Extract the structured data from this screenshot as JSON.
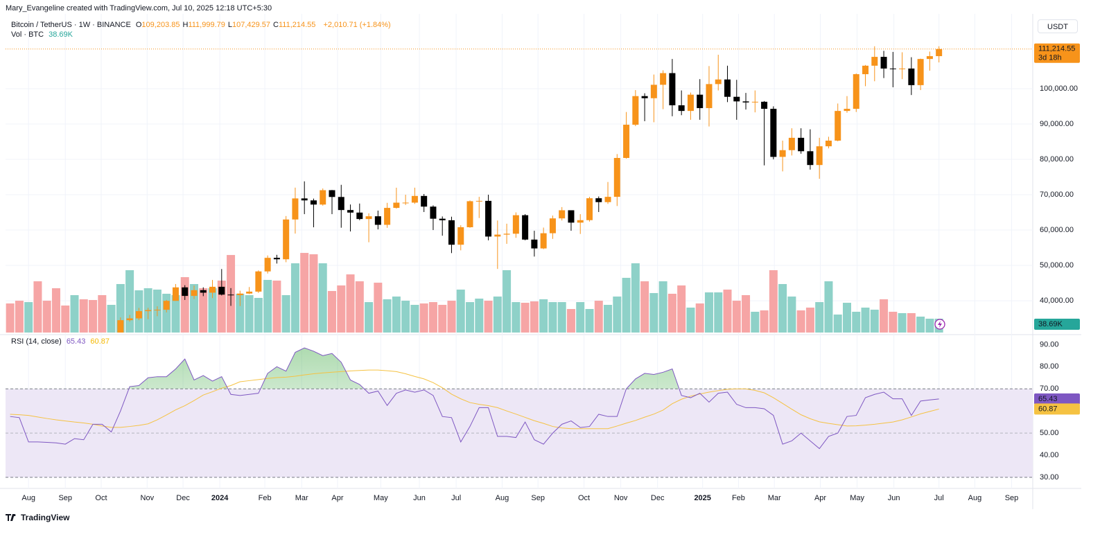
{
  "header": {
    "credit": "Mary_Evangeline created with TradingView.com, Jul 10, 2025 12:18 UTC+5:30",
    "symbol": "Bitcoin / TetherUS · 1W · BINANCE",
    "ohlc": [
      {
        "key": "O",
        "value": "109,203.85"
      },
      {
        "key": "H",
        "value": "111,999.79"
      },
      {
        "key": "L",
        "value": "107,429.57"
      },
      {
        "key": "C",
        "value": "111,214.55"
      }
    ],
    "change": "+2,010.71 (+1.84%)",
    "volume_title": "Vol · BTC",
    "currency": "USDT"
  },
  "footer": {
    "brand": "TradingView"
  },
  "chart_data": {
    "type": "candlestick",
    "xlim": [
      -0.5,
      111.2
    ],
    "xticks": [
      {
        "value": 2,
        "label": "Aug"
      },
      {
        "value": 6,
        "label": "Sep"
      },
      {
        "value": 9.9,
        "label": "Oct"
      },
      {
        "value": 14.9,
        "label": "Nov"
      },
      {
        "value": 18.8,
        "label": "Dec"
      },
      {
        "value": 22.8,
        "label": "2024"
      },
      {
        "value": 27.7,
        "label": "Feb"
      },
      {
        "value": 31.7,
        "label": "Mar"
      },
      {
        "value": 35.6,
        "label": "Apr"
      },
      {
        "value": 40.3,
        "label": "May"
      },
      {
        "value": 44.5,
        "label": "Jun"
      },
      {
        "value": 48.5,
        "label": "Jul"
      },
      {
        "value": 53.5,
        "label": "Aug"
      },
      {
        "value": 57.4,
        "label": "Sep"
      },
      {
        "value": 62.4,
        "label": "Oct"
      },
      {
        "value": 66.4,
        "label": "Nov"
      },
      {
        "value": 70.4,
        "label": "Dec"
      },
      {
        "value": 75.3,
        "label": "2025"
      },
      {
        "value": 79.2,
        "label": "Feb"
      },
      {
        "value": 83.1,
        "label": "Mar"
      },
      {
        "value": 88.1,
        "label": "Apr"
      },
      {
        "value": 92.1,
        "label": "May"
      },
      {
        "value": 96.1,
        "label": "Jun"
      },
      {
        "value": 101,
        "label": "Jul"
      },
      {
        "value": 104.9,
        "label": "Aug"
      },
      {
        "value": 108.9,
        "label": "Sep"
      }
    ],
    "year_ticks_bold": true,
    "ylim": [
      31000,
      119600
    ],
    "yticks": [
      {
        "value": 40000,
        "label": "40,000.00"
      },
      {
        "value": 50000,
        "label": "50,000.00"
      },
      {
        "value": 60000,
        "label": "60,000.00"
      },
      {
        "value": 70000,
        "label": "70,000.00"
      },
      {
        "value": 80000,
        "label": "80,000.00"
      },
      {
        "value": 90000,
        "label": "90,000.00"
      },
      {
        "value": 100000,
        "label": "100,000.00"
      }
    ],
    "grid": true,
    "up_color": "#f7931a",
    "down_color": "#000000",
    "candles": {
      "open": [
        null,
        null,
        null,
        null,
        null,
        null,
        null,
        null,
        null,
        null,
        null,
        null,
        29990,
        34500,
        35010,
        37060,
        37360,
        37450,
        39970,
        43780,
        41370,
        42990,
        42280,
        43950,
        41730,
        41580,
        42030,
        42580,
        48300,
        52140,
        51730,
        62990,
        68950,
        68390,
        67210,
        71280,
        69360,
        65660,
        64940,
        63120,
        63900,
        61480,
        66270,
        67750,
        67760,
        69650,
        66630,
        63210,
        62770,
        55850,
        60800,
        68160,
        68260,
        58160,
        58710,
        58960,
        64200,
        57300,
        54800,
        59100,
        63300,
        65600,
        62100,
        62800,
        69000,
        67900,
        69400,
        80400,
        89800,
        97900,
        97300,
        101100,
        104400,
        95300,
        93700,
        98300,
        94500,
        101300,
        102600,
        97700,
        96400,
        96100,
        96300,
        94300,
        80700,
        82600,
        86100,
        82300,
        78400,
        83700,
        85300,
        93700,
        94300,
        104100,
        106500,
        109000,
        105700,
        105600,
        105700,
        101000,
        108400,
        109203.85
      ],
      "high": [
        null,
        null,
        null,
        null,
        null,
        null,
        null,
        null,
        null,
        null,
        null,
        null,
        35280,
        35980,
        37980,
        38000,
        38420,
        40250,
        44730,
        44400,
        44300,
        43800,
        45880,
        48970,
        43580,
        42840,
        43880,
        48590,
        52810,
        52990,
        63970,
        72000,
        73780,
        68900,
        71770,
        71340,
        72800,
        67230,
        67500,
        64730,
        65500,
        67700,
        71980,
        70000,
        71990,
        70200,
        66990,
        63850,
        63780,
        61360,
        68370,
        69400,
        70000,
        62700,
        61800,
        65000,
        64500,
        59800,
        60700,
        64100,
        66500,
        65200,
        64500,
        69400,
        69500,
        73600,
        81500,
        93400,
        99600,
        98700,
        104000,
        105200,
        108400,
        99500,
        98900,
        102700,
        106400,
        109600,
        106500,
        102500,
        98800,
        99500,
        96500,
        95000,
        85300,
        88800,
        88800,
        88500,
        86100,
        86400,
        95800,
        97900,
        104300,
        106700,
        112000,
        110700,
        110400,
        110300,
        108900,
        108500,
        110500,
        111999.79
      ],
      "low": [
        null,
        null,
        null,
        null,
        null,
        null,
        null,
        null,
        null,
        null,
        null,
        null,
        29900,
        34080,
        34510,
        34800,
        35630,
        36700,
        39970,
        40220,
        40500,
        41300,
        40750,
        41500,
        38550,
        38500,
        41880,
        42200,
        47700,
        50520,
        50900,
        59000,
        64500,
        60780,
        66900,
        64500,
        60660,
        59600,
        62790,
        56550,
        60190,
        60630,
        66060,
        67100,
        67400,
        65100,
        60000,
        58400,
        53480,
        54260,
        60650,
        63400,
        57100,
        49000,
        56100,
        57800,
        57100,
        52500,
        54600,
        57500,
        62700,
        59800,
        58900,
        62400,
        65100,
        67400,
        66800,
        80200,
        89400,
        90800,
        90500,
        94200,
        92200,
        92500,
        91200,
        91200,
        89300,
        99500,
        96200,
        91200,
        94100,
        93300,
        78300,
        80000,
        76600,
        81100,
        81600,
        77100,
        74500,
        83100,
        85100,
        93200,
        93400,
        100700,
        102100,
        103000,
        100400,
        102700,
        98200,
        99600,
        105100,
        107429.57
      ],
      "close": [
        null,
        null,
        null,
        null,
        null,
        null,
        null,
        null,
        null,
        null,
        null,
        null,
        34500,
        35010,
        37060,
        37360,
        37450,
        39970,
        43780,
        41370,
        42990,
        42280,
        43950,
        41730,
        41580,
        42030,
        42580,
        48300,
        52140,
        51730,
        62990,
        68950,
        68390,
        67210,
        71280,
        69360,
        65660,
        64940,
        63120,
        63900,
        61480,
        66270,
        67750,
        67760,
        69650,
        66630,
        63210,
        62770,
        55850,
        60800,
        68160,
        68260,
        58160,
        58710,
        58960,
        64200,
        57300,
        54800,
        59100,
        63300,
        65600,
        62100,
        62800,
        69000,
        67900,
        69400,
        80400,
        89800,
        97900,
        97300,
        101100,
        104400,
        95300,
        93700,
        98300,
        94500,
        101300,
        102600,
        97700,
        96400,
        96100,
        96300,
        94300,
        80700,
        82600,
        86100,
        82300,
        78400,
        83700,
        85300,
        93700,
        94300,
        104100,
        106500,
        109000,
        105700,
        105600,
        105700,
        101000,
        108400,
        109200,
        111214.55
      ]
    },
    "last_price": {
      "value": 111214.55,
      "label": "111,214.55",
      "countdown": "3d 18h",
      "color": "#f7931a"
    },
    "volume": {
      "ylim": [
        0,
        875000
      ],
      "value_label": "38.69K",
      "tag_color": "#26a69a",
      "values": [
        81300,
        89000,
        85100,
        143200,
        89000,
        123800,
        75500,
        104500,
        92900,
        90900,
        104500,
        77400,
        135500,
        174200,
        118000,
        123800,
        120000,
        108400,
        104500,
        154800,
        135500,
        123800,
        123800,
        145100,
        216700,
        108400,
        104500,
        96800,
        147100,
        145100,
        104500,
        193500,
        222500,
        218700,
        193500,
        116100,
        131600,
        162500,
        143200,
        85100,
        139300,
        92900,
        100600,
        89000,
        77400,
        81300,
        85100,
        77400,
        89000,
        120000,
        85100,
        94800,
        89000,
        100600,
        174200,
        85100,
        83200,
        87100,
        92900,
        85100,
        85100,
        65800,
        85100,
        65800,
        89000,
        77400,
        100600,
        152900,
        193500,
        143200,
        110300,
        143200,
        108400,
        131600,
        69700,
        81300,
        112200,
        112200,
        120000,
        89000,
        104500,
        58100,
        61900,
        174200,
        135500,
        100600,
        61900,
        69700,
        85100,
        143200,
        50300,
        83200,
        58100,
        69700,
        63900,
        92900,
        58100,
        54200,
        54200,
        44500,
        38700,
        38690
      ],
      "colors": [
        "#f6a5a5",
        "#f6a5a5",
        "#8ed1c8",
        "#f6a5a5",
        "#f6a5a5",
        "#f6a5a5",
        "#f6a5a5",
        "#8ed1c8",
        "#f6a5a5",
        "#f6a5a5",
        "#f6a5a5",
        "#8ed1c8",
        "#8ed1c8",
        "#8ed1c8",
        "#8ed1c8",
        "#8ed1c8",
        "#8ed1c8",
        "#8ed1c8",
        "#8ed1c8",
        "#f6a5a5",
        "#8ed1c8",
        "#f6a5a5",
        "#8ed1c8",
        "#f6a5a5",
        "#f6a5a5",
        "#8ed1c8",
        "#8ed1c8",
        "#8ed1c8",
        "#8ed1c8",
        "#f6a5a5",
        "#8ed1c8",
        "#8ed1c8",
        "#f6a5a5",
        "#f6a5a5",
        "#8ed1c8",
        "#f6a5a5",
        "#f6a5a5",
        "#f6a5a5",
        "#f6a5a5",
        "#8ed1c8",
        "#f6a5a5",
        "#8ed1c8",
        "#8ed1c8",
        "#8ed1c8",
        "#8ed1c8",
        "#f6a5a5",
        "#f6a5a5",
        "#f6a5a5",
        "#f6a5a5",
        "#8ed1c8",
        "#8ed1c8",
        "#8ed1c8",
        "#f6a5a5",
        "#8ed1c8",
        "#8ed1c8",
        "#8ed1c8",
        "#f6a5a5",
        "#f6a5a5",
        "#8ed1c8",
        "#8ed1c8",
        "#8ed1c8",
        "#f6a5a5",
        "#8ed1c8",
        "#8ed1c8",
        "#f6a5a5",
        "#8ed1c8",
        "#8ed1c8",
        "#8ed1c8",
        "#8ed1c8",
        "#f6a5a5",
        "#8ed1c8",
        "#8ed1c8",
        "#f6a5a5",
        "#f6a5a5",
        "#8ed1c8",
        "#f6a5a5",
        "#8ed1c8",
        "#8ed1c8",
        "#f6a5a5",
        "#f6a5a5",
        "#f6a5a5",
        "#8ed1c8",
        "#f6a5a5",
        "#f6a5a5",
        "#8ed1c8",
        "#8ed1c8",
        "#f6a5a5",
        "#f6a5a5",
        "#8ed1c8",
        "#8ed1c8",
        "#8ed1c8",
        "#8ed1c8",
        "#8ed1c8",
        "#8ed1c8",
        "#8ed1c8",
        "#f6a5a5",
        "#f6a5a5",
        "#8ed1c8",
        "#f6a5a5",
        "#8ed1c8",
        "#8ed1c8",
        "#8ed1c8"
      ]
    },
    "rsi": {
      "title": "RSI (14, close)",
      "ylim": [
        25,
        94.5
      ],
      "yticks": [
        {
          "value": 30,
          "label": "30.00"
        },
        {
          "value": 40,
          "label": "40.00"
        },
        {
          "value": 50,
          "label": "50.00"
        },
        {
          "value": 60,
          "label": "60.00"
        },
        {
          "value": 70,
          "label": "70.00"
        },
        {
          "value": 80,
          "label": "80.00"
        },
        {
          "value": 90,
          "label": "90.00"
        }
      ],
      "band": [
        30,
        70
      ],
      "mid": 50,
      "band_color": "#ede7f6",
      "overbought_fill": "#4caf50",
      "color": "#7e57c2",
      "value_label": "65.43",
      "values": [
        57.5,
        57,
        46,
        46,
        45.8,
        45.6,
        45,
        47.5,
        47,
        54,
        54,
        50.5,
        60,
        71,
        71.5,
        75,
        75.5,
        75.5,
        79,
        83.5,
        74,
        76,
        73.5,
        75.5,
        67.5,
        67,
        67.5,
        68,
        77,
        80,
        78,
        86.5,
        88.5,
        87,
        85,
        86,
        82,
        74,
        72,
        68,
        69,
        62.5,
        68,
        69.5,
        68.5,
        69.5,
        67,
        57.5,
        57,
        46,
        53,
        61.5,
        61.5,
        48.5,
        48.5,
        48,
        55,
        47,
        45,
        50,
        54,
        55.5,
        52.5,
        53,
        58.5,
        57.5,
        57.5,
        70,
        74.5,
        77,
        76.5,
        77.5,
        79,
        67,
        66,
        68,
        64,
        68,
        68.5,
        63,
        61.5,
        61.5,
        61,
        58,
        45,
        46.5,
        50,
        46.5,
        43,
        48.5,
        50,
        57.5,
        58,
        66,
        67.5,
        68.5,
        65.5,
        65.5,
        58,
        64.5,
        65,
        65.43
      ],
      "sma": {
        "color": "#f5c242",
        "value_label": "60.87",
        "values": [
          58.5,
          58.3,
          58,
          57.3,
          56.6,
          56,
          55.5,
          55,
          54.6,
          54,
          53.2,
          52.6,
          52.6,
          53,
          53.5,
          54.2,
          56,
          58.2,
          60.5,
          62.4,
          64.7,
          67.2,
          68.7,
          70.3,
          71.5,
          73.2,
          73.7,
          74.2,
          74.7,
          75.1,
          75.3,
          75.7,
          76.3,
          76.8,
          77.2,
          77.5,
          77.8,
          78.1,
          78.3,
          78.5,
          78.5,
          78.2,
          77.8,
          76.8,
          75.6,
          74.5,
          72.8,
          70.5,
          67.6,
          65.5,
          63.8,
          63,
          62.4,
          61.5,
          60,
          58.6,
          57.1,
          55.6,
          54.4,
          53,
          52.3,
          52,
          52,
          52,
          52,
          52,
          53.2,
          54.5,
          55.7,
          57.2,
          58.6,
          60.4,
          63.3,
          65.3,
          66.7,
          67.7,
          68.5,
          69.2,
          69.8,
          70,
          70,
          69.3,
          68.2,
          66,
          63.4,
          60.8,
          58.3,
          56.5,
          55.1,
          54.4,
          53.8,
          53.2,
          53.3,
          53.6,
          54,
          54.5,
          55,
          56,
          57.3,
          58.7,
          59.8,
          60.87
        ]
      }
    }
  }
}
